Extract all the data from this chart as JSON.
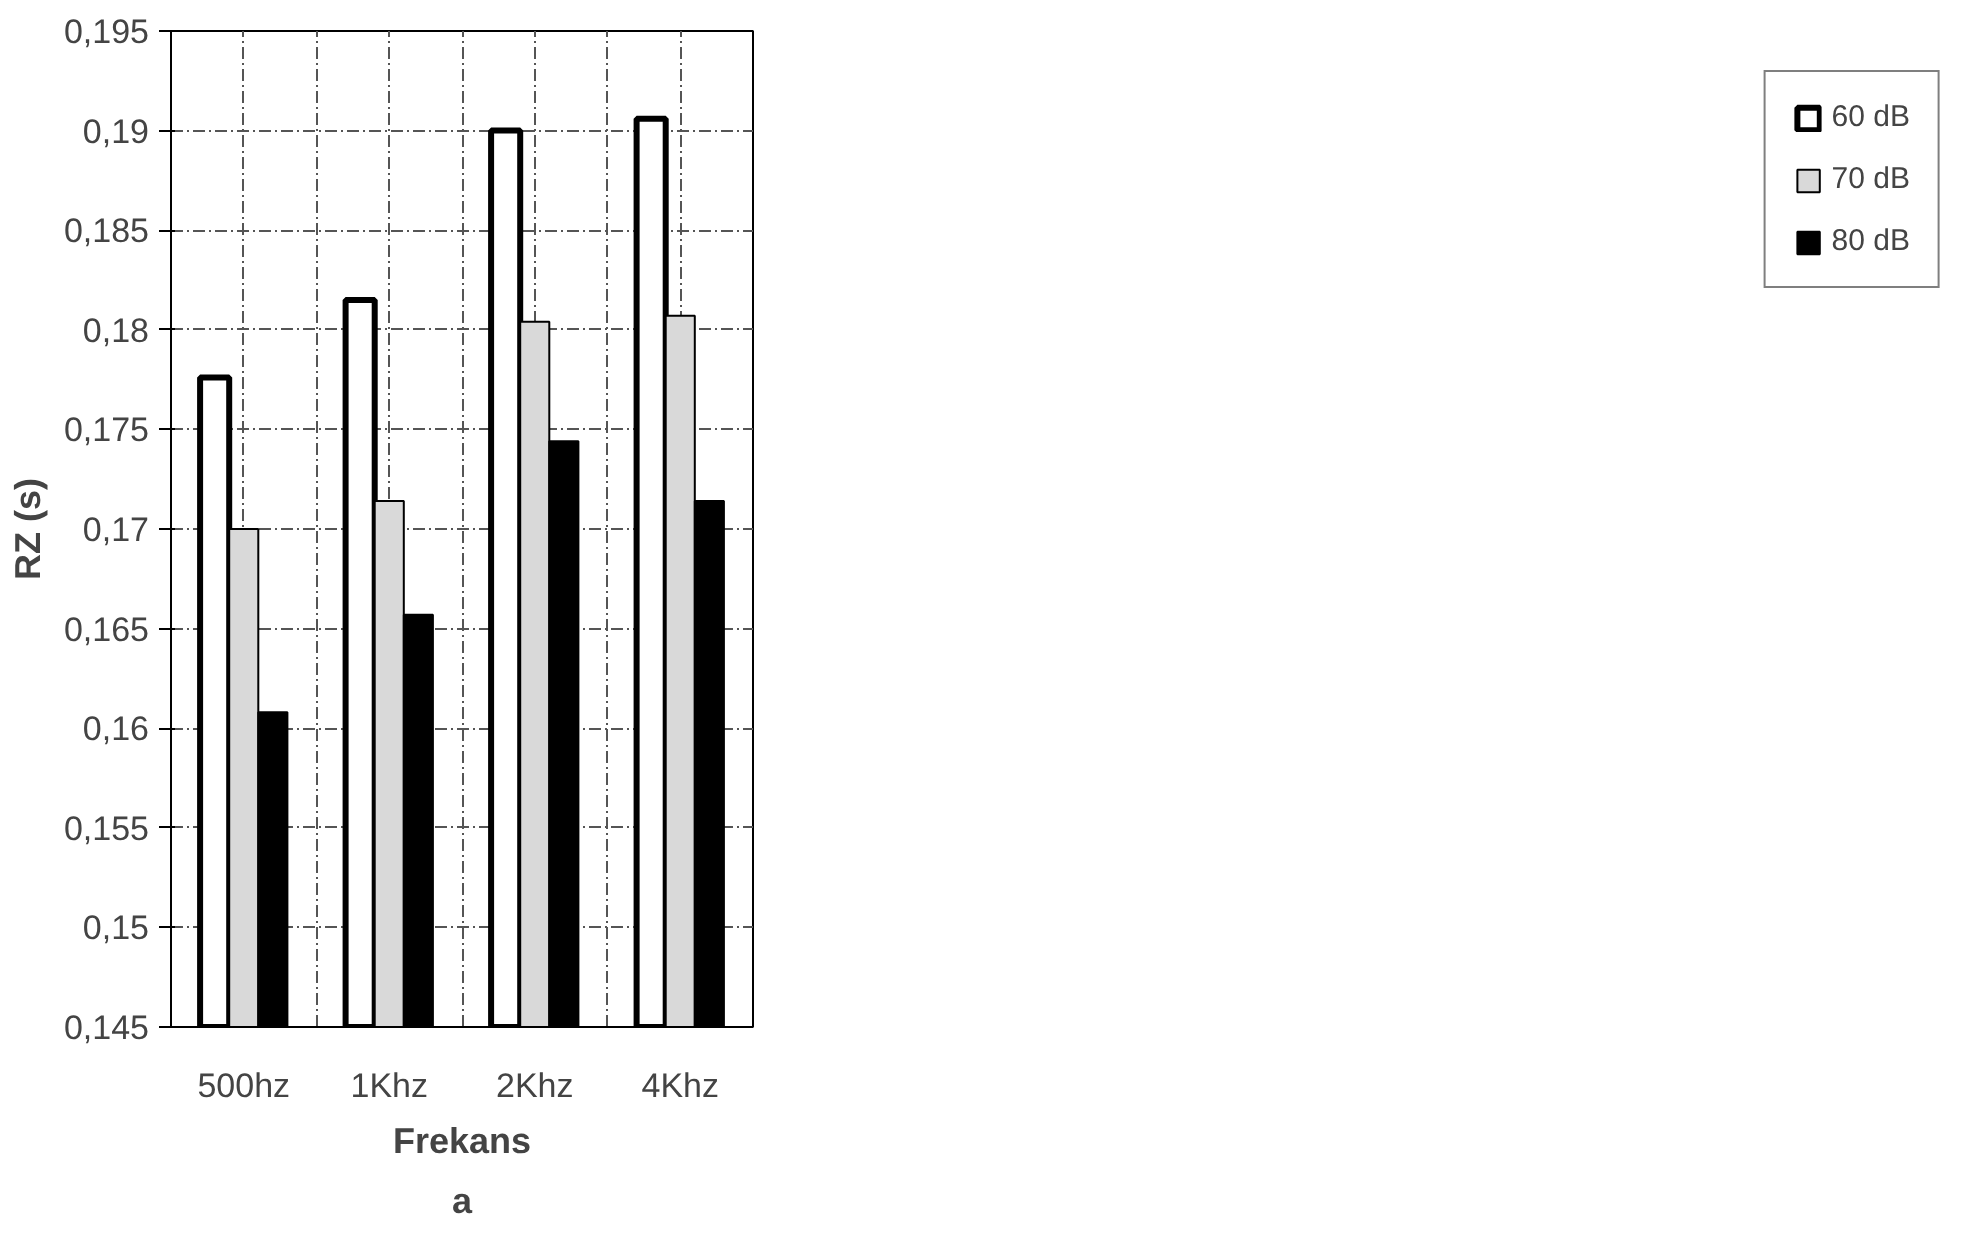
{
  "chart_data": {
    "type": "bar",
    "xlabel": "Frekans",
    "ylabel": "RZ (s)",
    "categories": [
      "500hz",
      "1Khz",
      "2Khz",
      "4Khz"
    ],
    "series": [
      {
        "name": "60 dB",
        "color": "#ffffff",
        "values": [
          0.1776,
          0.1815,
          0.19,
          0.1906
        ]
      },
      {
        "name": "70 dB",
        "color": "#d9d9d9",
        "values": [
          0.17,
          0.1714,
          0.1804,
          0.1807
        ]
      },
      {
        "name": "80 dB",
        "color": "#000000",
        "values": [
          0.1608,
          0.1657,
          0.1744,
          0.1714
        ]
      }
    ],
    "ylim": [
      0.145,
      0.195
    ],
    "yticks": [
      {
        "value": 0.145,
        "label": "0,145"
      },
      {
        "value": 0.15,
        "label": "0,15"
      },
      {
        "value": 0.155,
        "label": "0,155"
      },
      {
        "value": 0.16,
        "label": "0,16"
      },
      {
        "value": 0.165,
        "label": "0,165"
      },
      {
        "value": 0.17,
        "label": "0,17"
      },
      {
        "value": 0.175,
        "label": "0,175"
      },
      {
        "value": 0.18,
        "label": "0,18"
      },
      {
        "value": 0.185,
        "label": "0,185"
      },
      {
        "value": 0.19,
        "label": "0,19"
      },
      {
        "value": 0.195,
        "label": "0,195"
      }
    ],
    "grid": true,
    "legend": "right",
    "annotations": [
      "a"
    ]
  }
}
